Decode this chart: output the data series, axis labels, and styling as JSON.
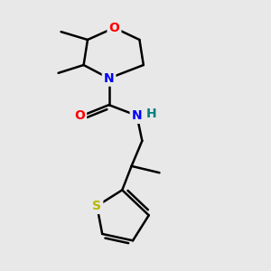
{
  "background_color": "#e8e8e8",
  "atom_colors": {
    "C": "#000000",
    "N": "#0000ff",
    "O": "#ff0000",
    "S": "#b8b800",
    "H": "#008080"
  },
  "bond_color": "#000000",
  "bond_width": 1.8,
  "figsize": [
    3.0,
    3.0
  ],
  "dpi": 100
}
